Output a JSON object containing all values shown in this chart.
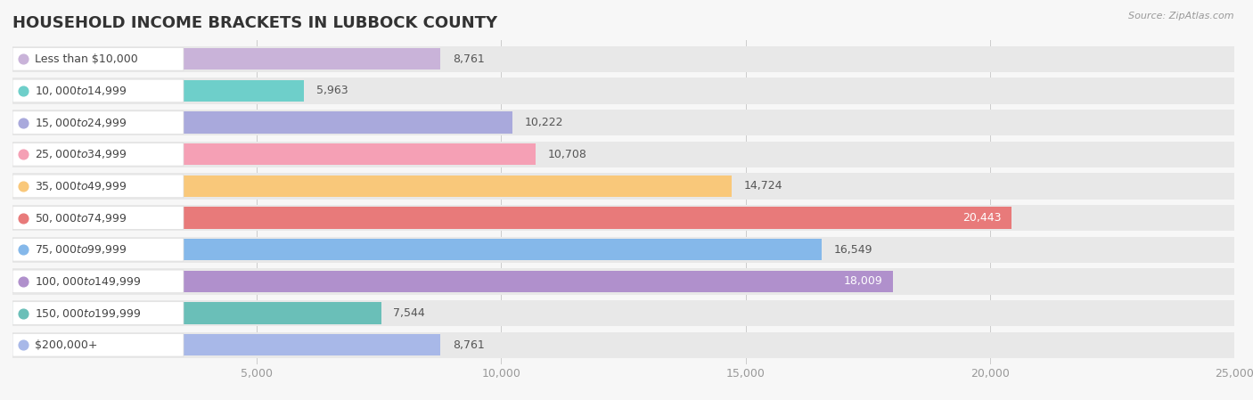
{
  "title": "HOUSEHOLD INCOME BRACKETS IN LUBBOCK COUNTY",
  "source": "Source: ZipAtlas.com",
  "categories": [
    "Less than $10,000",
    "$10,000 to $14,999",
    "$15,000 to $24,999",
    "$25,000 to $34,999",
    "$35,000 to $49,999",
    "$50,000 to $74,999",
    "$75,000 to $99,999",
    "$100,000 to $149,999",
    "$150,000 to $199,999",
    "$200,000+"
  ],
  "values": [
    8761,
    5963,
    10222,
    10708,
    14724,
    20443,
    16549,
    18009,
    7544,
    8761
  ],
  "colors": [
    "#c9b3d9",
    "#6ecfca",
    "#a9a9dc",
    "#f5a0b5",
    "#f9c87a",
    "#e87a7a",
    "#85b8ea",
    "#b090cc",
    "#6abfb8",
    "#a8b8e8"
  ],
  "label_colors": [
    "#c9b3d9",
    "#6ecfca",
    "#a9a9dc",
    "#f5a0b5",
    "#f9c87a",
    "#e87a7a",
    "#85b8ea",
    "#b090cc",
    "#6abfb8",
    "#a8b8e8"
  ],
  "value_label_inside": [
    false,
    false,
    false,
    false,
    false,
    true,
    false,
    true,
    false,
    false
  ],
  "xlim": [
    0,
    25000
  ],
  "xticks": [
    0,
    5000,
    10000,
    15000,
    20000,
    25000
  ],
  "xtick_labels": [
    "",
    "5,000",
    "10,000",
    "15,000",
    "20,000",
    "25,000"
  ],
  "background_color": "#f7f7f7",
  "bar_bg_color": "#e8e8e8",
  "title_fontsize": 13,
  "label_fontsize": 9,
  "value_fontsize": 9,
  "tick_fontsize": 9
}
